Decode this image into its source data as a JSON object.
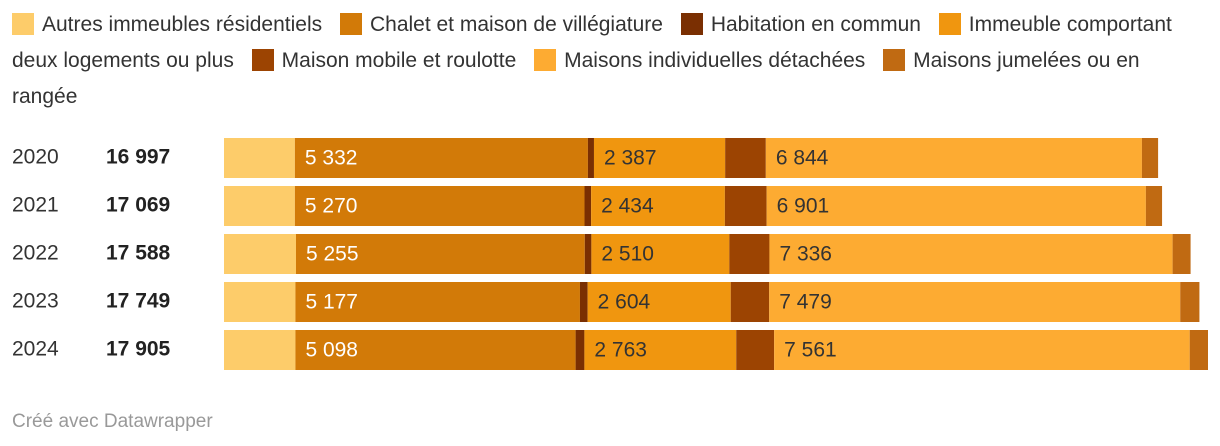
{
  "chart_data": {
    "type": "stacked-bar-horizontal",
    "categories": [
      "2020",
      "2021",
      "2022",
      "2023",
      "2024"
    ],
    "totals": {
      "values": [
        16997,
        17069,
        17588,
        17749,
        17905
      ],
      "value_labels": [
        "16 997",
        "17 069",
        "17 588",
        "17 749",
        "17 905"
      ]
    },
    "series": [
      {
        "name": "Autres immeubles résidentiels",
        "color": "#fdcc6a",
        "values": [
          1290,
          1290,
          1310,
          1300,
          1300
        ]
      },
      {
        "name": "Chalet et maison de villégiature",
        "color": "#d27a08",
        "values": [
          5332,
          5270,
          5255,
          5177,
          5098
        ],
        "value_labels": [
          "5 332",
          "5 270",
          "5 255",
          "5 177",
          "5 098"
        ]
      },
      {
        "name": "Habitation en commun",
        "color": "#7a2f02",
        "values": [
          110,
          120,
          120,
          140,
          160
        ]
      },
      {
        "name": "Immeuble comportant deux logements ou plus",
        "color": "#f0960f",
        "values": [
          2387,
          2434,
          2510,
          2604,
          2763
        ],
        "value_labels": [
          "2 387",
          "2 434",
          "2 510",
          "2 604",
          "2 763"
        ]
      },
      {
        "name": "Maison mobile et roulotte",
        "color": "#9c4402",
        "values": [
          740,
          760,
          730,
          700,
          690
        ]
      },
      {
        "name": "Maisons individuelles détachées",
        "color": "#fdab32",
        "values": [
          6844,
          6901,
          7336,
          7479,
          7561
        ],
        "value_labels": [
          "6 844",
          "6 901",
          "7 336",
          "7 479",
          "7 561"
        ]
      },
      {
        "name": "Maisons jumelées ou en rangée",
        "color": "#c06a12",
        "values": [
          294,
          294,
          327,
          349,
          333
        ]
      }
    ],
    "source": "Créé avec Datawrapper"
  }
}
